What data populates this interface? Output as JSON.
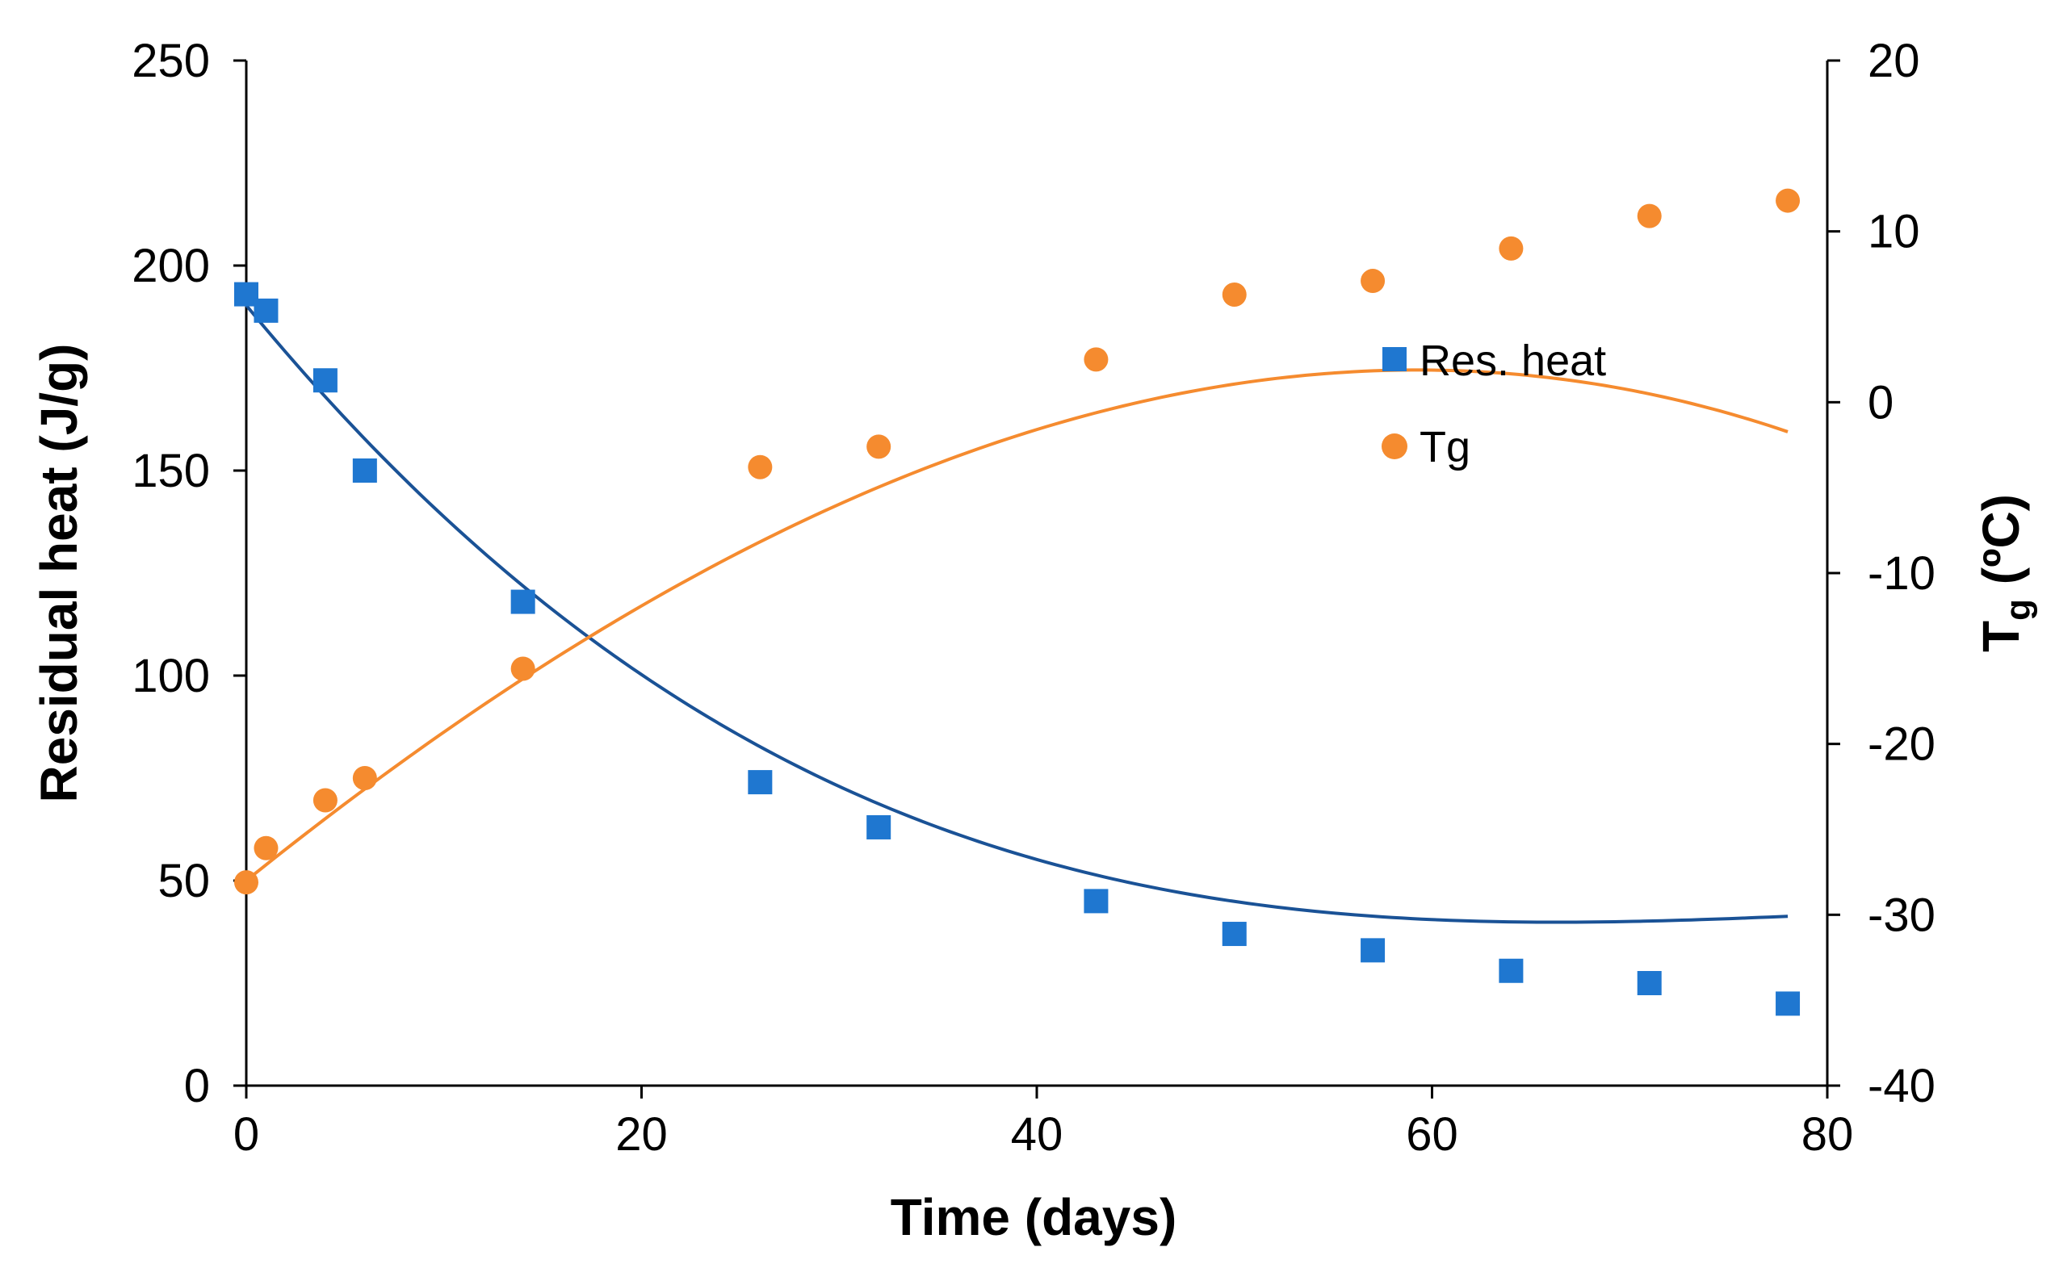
{
  "chart_data": {
    "type": "scatter",
    "title": "",
    "xlabel": "Time (days)",
    "ylabel": "Residual heat (J/g)",
    "y2label_main": "T",
    "y2label_sub": "g",
    "y2label_suffix": " (ºC)",
    "xlim": [
      0,
      80
    ],
    "ylim": [
      0,
      250
    ],
    "y2lim": [
      -40,
      20
    ],
    "x_ticks": [
      0,
      20,
      40,
      60,
      80
    ],
    "y_ticks": [
      0,
      50,
      100,
      150,
      200,
      250
    ],
    "y2_ticks": [
      -40,
      -30,
      -20,
      -10,
      0,
      10,
      20
    ],
    "x_tick_labels": [
      "0",
      "20",
      "40",
      "60",
      "80"
    ],
    "y_tick_labels": [
      "0",
      "50",
      "100",
      "150",
      "200",
      "250"
    ],
    "y2_tick_labels": [
      "-40",
      "-30",
      "-20",
      "-10",
      "0",
      "10",
      "20"
    ],
    "grid": false,
    "legend_position": "upper-right-inside",
    "series": [
      {
        "name": "Res. heat",
        "axis": "left",
        "marker": "square",
        "color": "#1f77d0",
        "trend_color": "#1a5296",
        "x": [
          0,
          1,
          4,
          6,
          14,
          26,
          32,
          43,
          50,
          57,
          64,
          71,
          78
        ],
        "y": [
          193,
          189,
          172,
          150,
          118,
          74,
          63,
          45,
          37,
          33,
          28,
          25,
          20
        ],
        "trend": {
          "type": "polynomial",
          "coefficients": [
            190.3,
            -5.87,
            0.0744,
            -0.000303
          ]
        }
      },
      {
        "name": "Tg",
        "axis": "right",
        "marker": "circle",
        "color": "#f58b2f",
        "trend_color": "#f58b2f",
        "x": [
          0,
          1,
          4,
          6,
          14,
          26,
          32,
          43,
          50,
          57,
          64,
          71,
          78
        ],
        "y": [
          -28.1,
          -26.1,
          -23.3,
          -22.0,
          -15.6,
          -3.8,
          -2.6,
          2.5,
          6.3,
          7.1,
          9.0,
          10.9,
          11.8
        ],
        "trend": {
          "type": "polynomial",
          "coefficients": [
            -28.0,
            0.93,
            -0.00585,
            -2.25e-05
          ]
        }
      }
    ]
  }
}
